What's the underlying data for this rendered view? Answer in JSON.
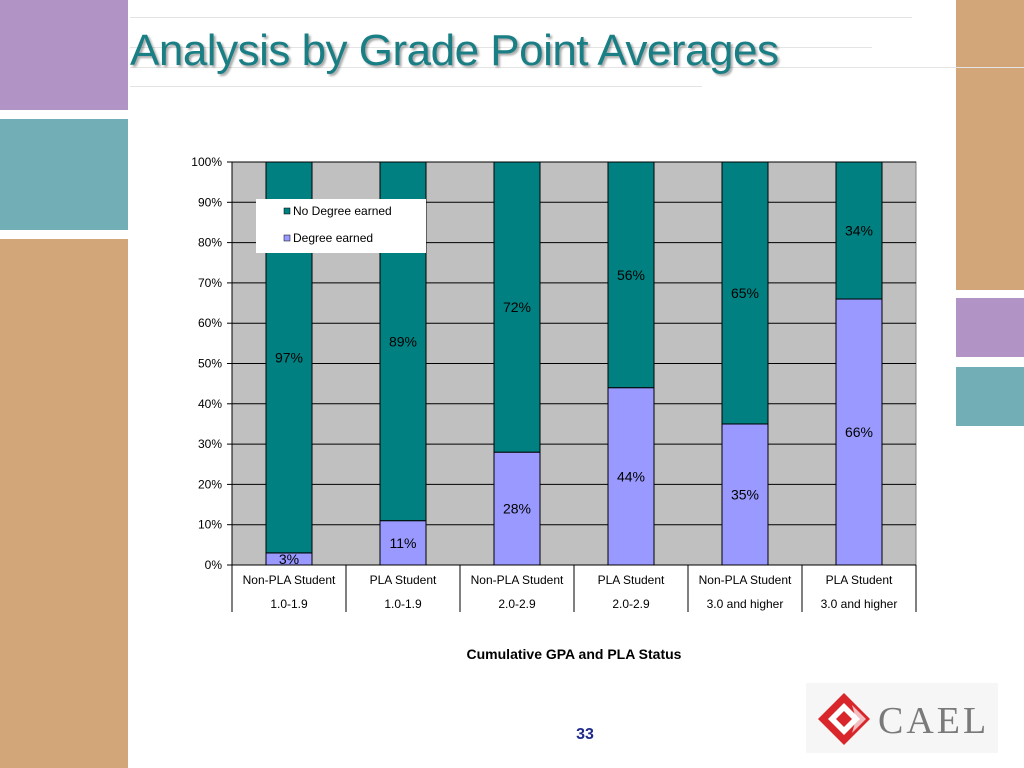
{
  "slide": {
    "title": "Analysis by Grade Point Averages",
    "page_number": "33",
    "colors": {
      "purple": "#b193c6",
      "teal": "#72aeb6",
      "tan": "#d3a679",
      "title": "#1a7f84"
    }
  },
  "logo": {
    "text": "CAEL",
    "icon": "cael-diamond-logo-icon",
    "color": "#d8262b"
  },
  "chart_data": {
    "type": "bar",
    "stacked": true,
    "categories": [
      [
        "Non-PLA Student",
        "1.0-1.9"
      ],
      [
        "PLA Student",
        "1.0-1.9"
      ],
      [
        "Non-PLA Student",
        "2.0-2.9"
      ],
      [
        "PLA Student",
        "2.0-2.9"
      ],
      [
        "Non-PLA Student",
        "3.0 and higher"
      ],
      [
        "PLA Student",
        "3.0 and higher"
      ]
    ],
    "series": [
      {
        "name": "Degree earned",
        "values": [
          3,
          11,
          28,
          44,
          35,
          66
        ],
        "labels": [
          "3%",
          "11%",
          "28%",
          "44%",
          "35%",
          "66%"
        ],
        "color": "#9999ff"
      },
      {
        "name": "No Degree earned",
        "values": [
          97,
          89,
          72,
          56,
          65,
          34
        ],
        "labels": [
          "97%",
          "89%",
          "72%",
          "56%",
          "65%",
          "34%"
        ],
        "color": "#008080"
      }
    ],
    "legend_order": [
      "No Degree earned",
      "Degree earned"
    ],
    "legend_position": "top-left",
    "xlabel": "Cumulative GPA and PLA Status",
    "ylabel": "",
    "ylim": [
      0,
      100
    ],
    "yticks": [
      "0%",
      "10%",
      "20%",
      "30%",
      "40%",
      "50%",
      "60%",
      "70%",
      "80%",
      "90%",
      "100%"
    ],
    "grid": true,
    "plot_background": "#c0c0c0"
  }
}
